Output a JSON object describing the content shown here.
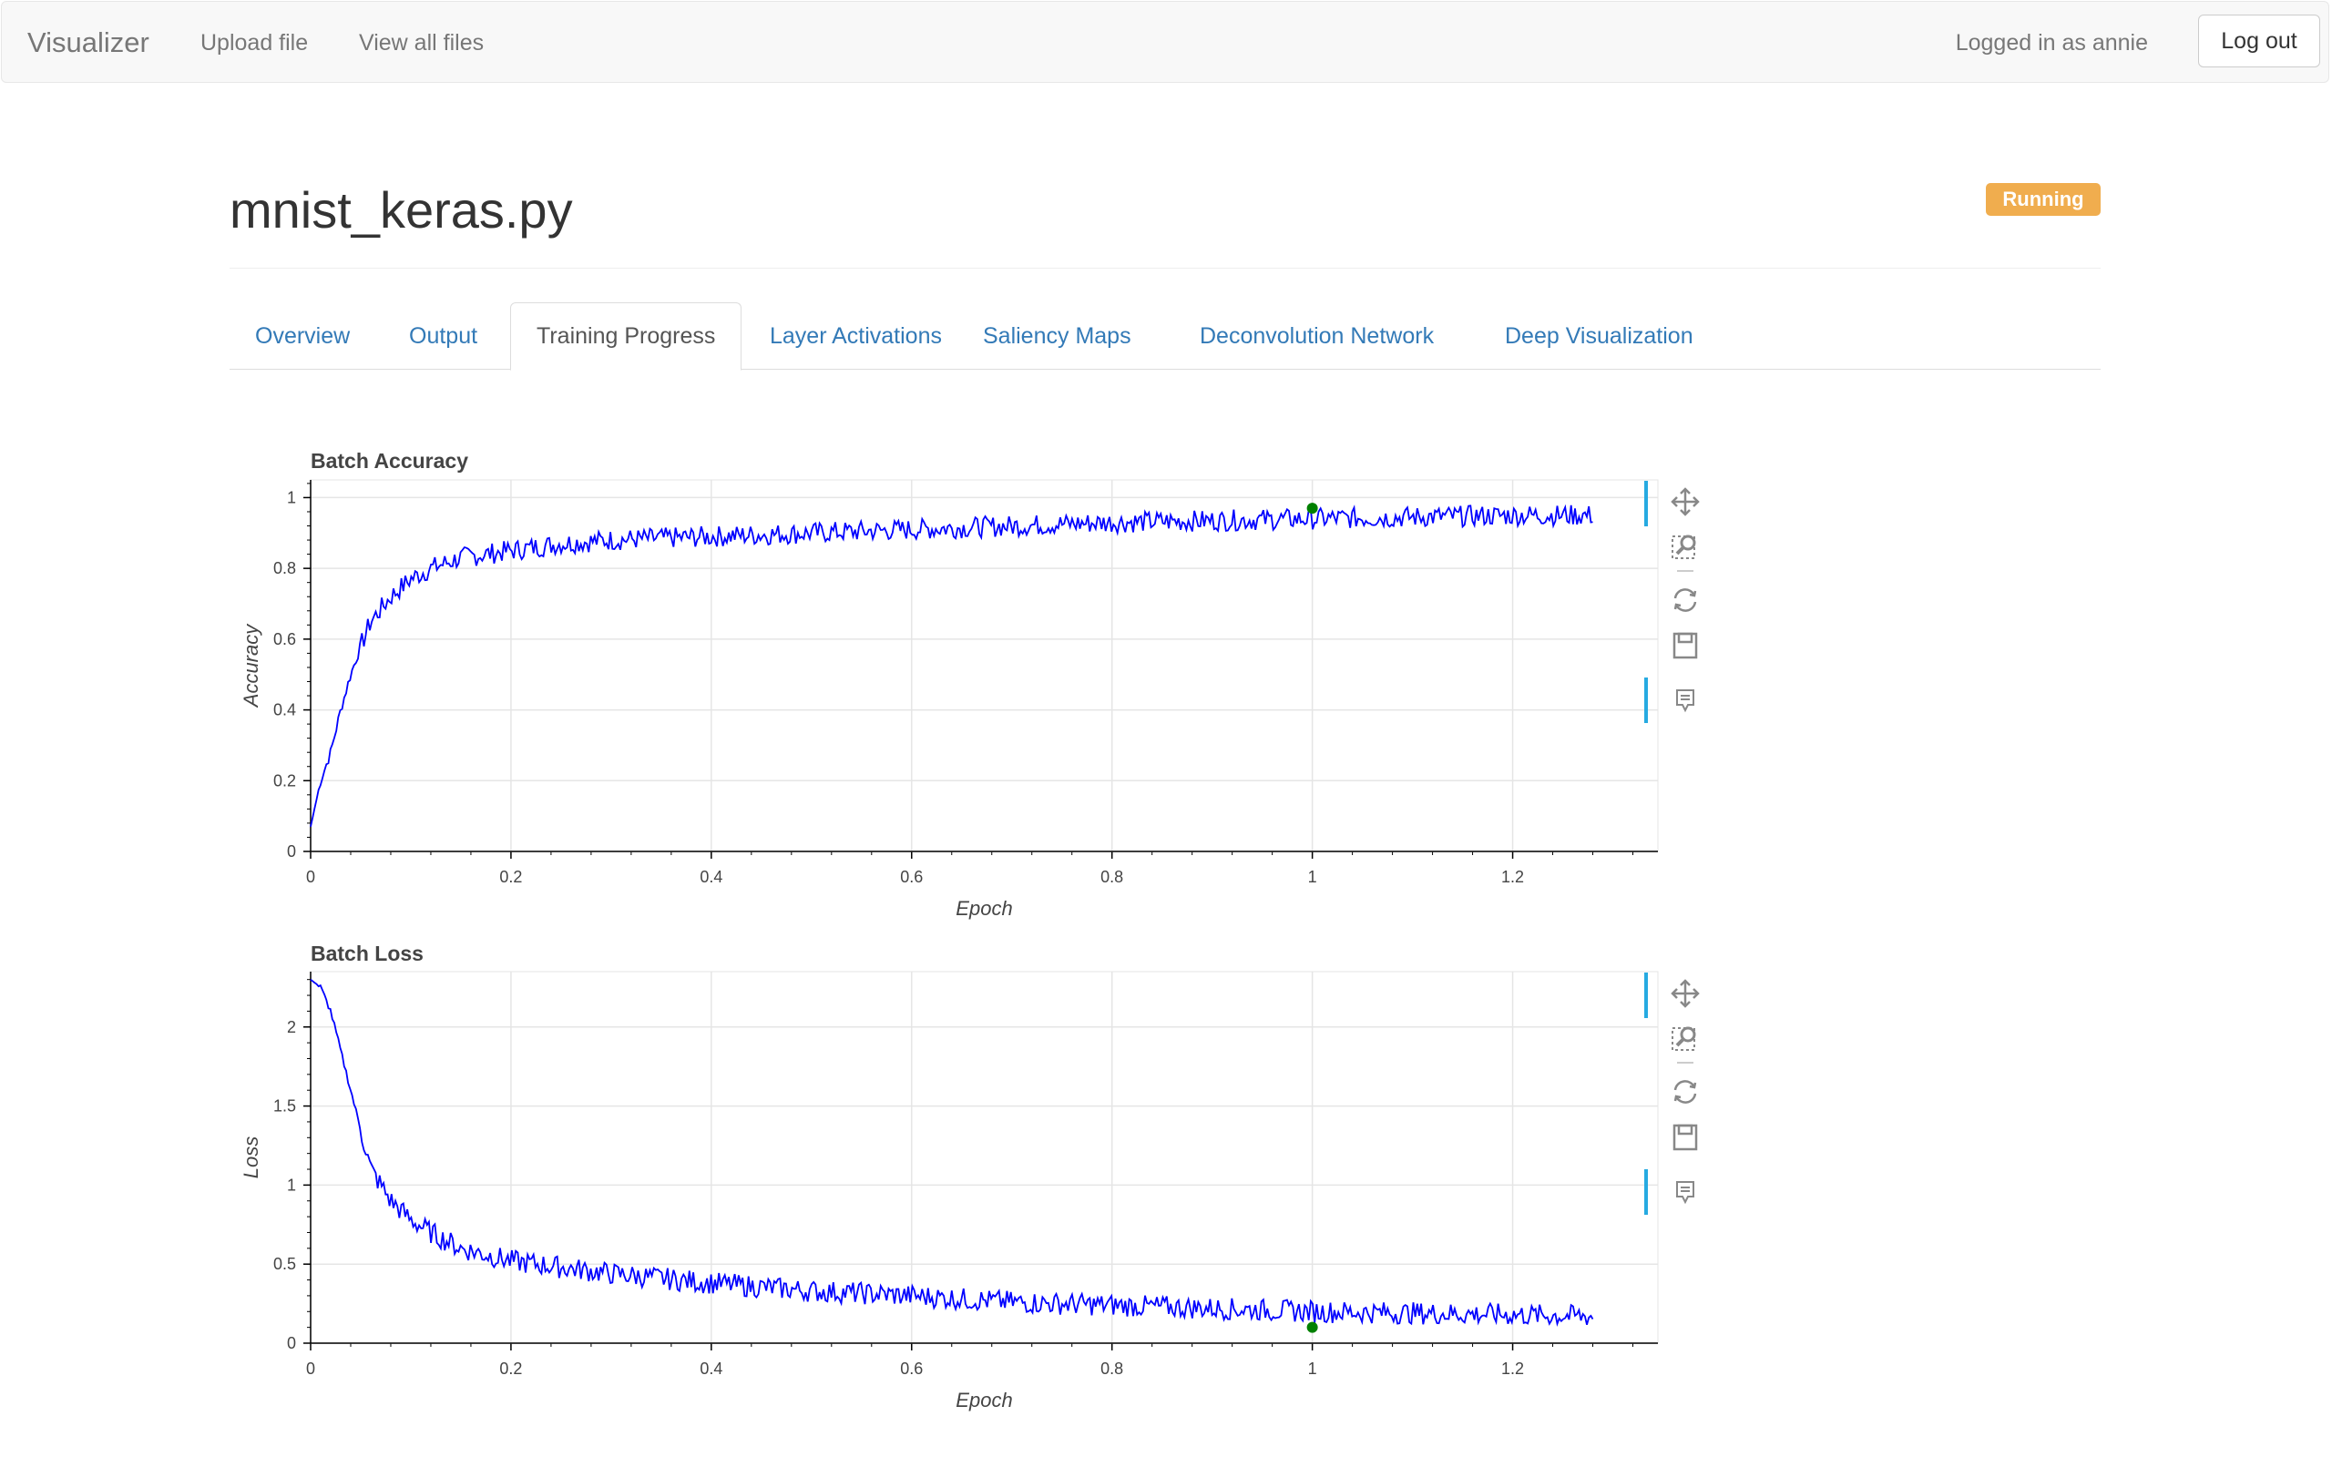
{
  "navbar": {
    "brand": "Visualizer",
    "links": [
      "Upload file",
      "View all files"
    ],
    "logged_in_text": "Logged in as annie",
    "logout_label": "Log out"
  },
  "page": {
    "title": "mnist_keras.py",
    "status": "Running",
    "status_color": "#f0ad4e"
  },
  "tabs": [
    {
      "label": "Overview",
      "active": false
    },
    {
      "label": "Output",
      "active": false
    },
    {
      "label": "Training Progress",
      "active": true
    },
    {
      "label": "Layer Activations",
      "active": false
    },
    {
      "label": "Saliency Maps",
      "active": false
    },
    {
      "label": "Deconvolution Network",
      "active": false
    },
    {
      "label": "Deep Visualization",
      "active": false
    }
  ],
  "toolbar_icons": [
    "pan-icon",
    "box-zoom-icon",
    "reset-icon",
    "save-icon",
    "hover-icon"
  ],
  "chart_data": [
    {
      "type": "line",
      "title": "Batch Accuracy",
      "xlabel": "Epoch",
      "ylabel": "Accuracy",
      "xlim": [
        0,
        1.345
      ],
      "ylim": [
        0,
        1.05
      ],
      "xticks": [
        "0",
        "0.2",
        "0.4",
        "0.6",
        "0.8",
        "1",
        "1.2"
      ],
      "yticks": [
        "0",
        "0.2",
        "0.4",
        "0.6",
        "0.8",
        "1"
      ],
      "grid": true,
      "line_color": "#0000ff",
      "marker": {
        "x": 1.0,
        "y": 0.97,
        "color": "#008000"
      },
      "series": [
        {
          "x": [
            0.0,
            0.01,
            0.02,
            0.03,
            0.04,
            0.05,
            0.06,
            0.08,
            0.1,
            0.12,
            0.15,
            0.2,
            0.25,
            0.3,
            0.4,
            0.5,
            0.6,
            0.7,
            0.8,
            0.9,
            1.0,
            1.1,
            1.2,
            1.28
          ],
          "values": [
            0.07,
            0.2,
            0.28,
            0.4,
            0.5,
            0.58,
            0.65,
            0.72,
            0.77,
            0.8,
            0.83,
            0.85,
            0.87,
            0.88,
            0.89,
            0.9,
            0.91,
            0.92,
            0.93,
            0.935,
            0.94,
            0.945,
            0.95,
            0.95
          ]
        }
      ]
    },
    {
      "type": "line",
      "title": "Batch Loss",
      "xlabel": "Epoch",
      "ylabel": "Loss",
      "xlim": [
        0,
        1.345
      ],
      "ylim": [
        0,
        2.35
      ],
      "xticks": [
        "0",
        "0.2",
        "0.4",
        "0.6",
        "0.8",
        "1",
        "1.2"
      ],
      "yticks": [
        "0",
        "0.5",
        "1",
        "1.5",
        "2"
      ],
      "grid": true,
      "line_color": "#0000ff",
      "marker": {
        "x": 1.0,
        "y": 0.1,
        "color": "#008000"
      },
      "series": [
        {
          "x": [
            0.0,
            0.01,
            0.02,
            0.03,
            0.04,
            0.05,
            0.06,
            0.08,
            0.1,
            0.12,
            0.15,
            0.2,
            0.25,
            0.3,
            0.4,
            0.5,
            0.6,
            0.7,
            0.8,
            0.9,
            1.0,
            1.1,
            1.2,
            1.28
          ],
          "values": [
            2.3,
            2.25,
            2.1,
            1.85,
            1.6,
            1.35,
            1.1,
            0.9,
            0.78,
            0.7,
            0.6,
            0.52,
            0.48,
            0.44,
            0.38,
            0.33,
            0.3,
            0.26,
            0.24,
            0.22,
            0.2,
            0.19,
            0.18,
            0.17
          ]
        }
      ]
    }
  ]
}
